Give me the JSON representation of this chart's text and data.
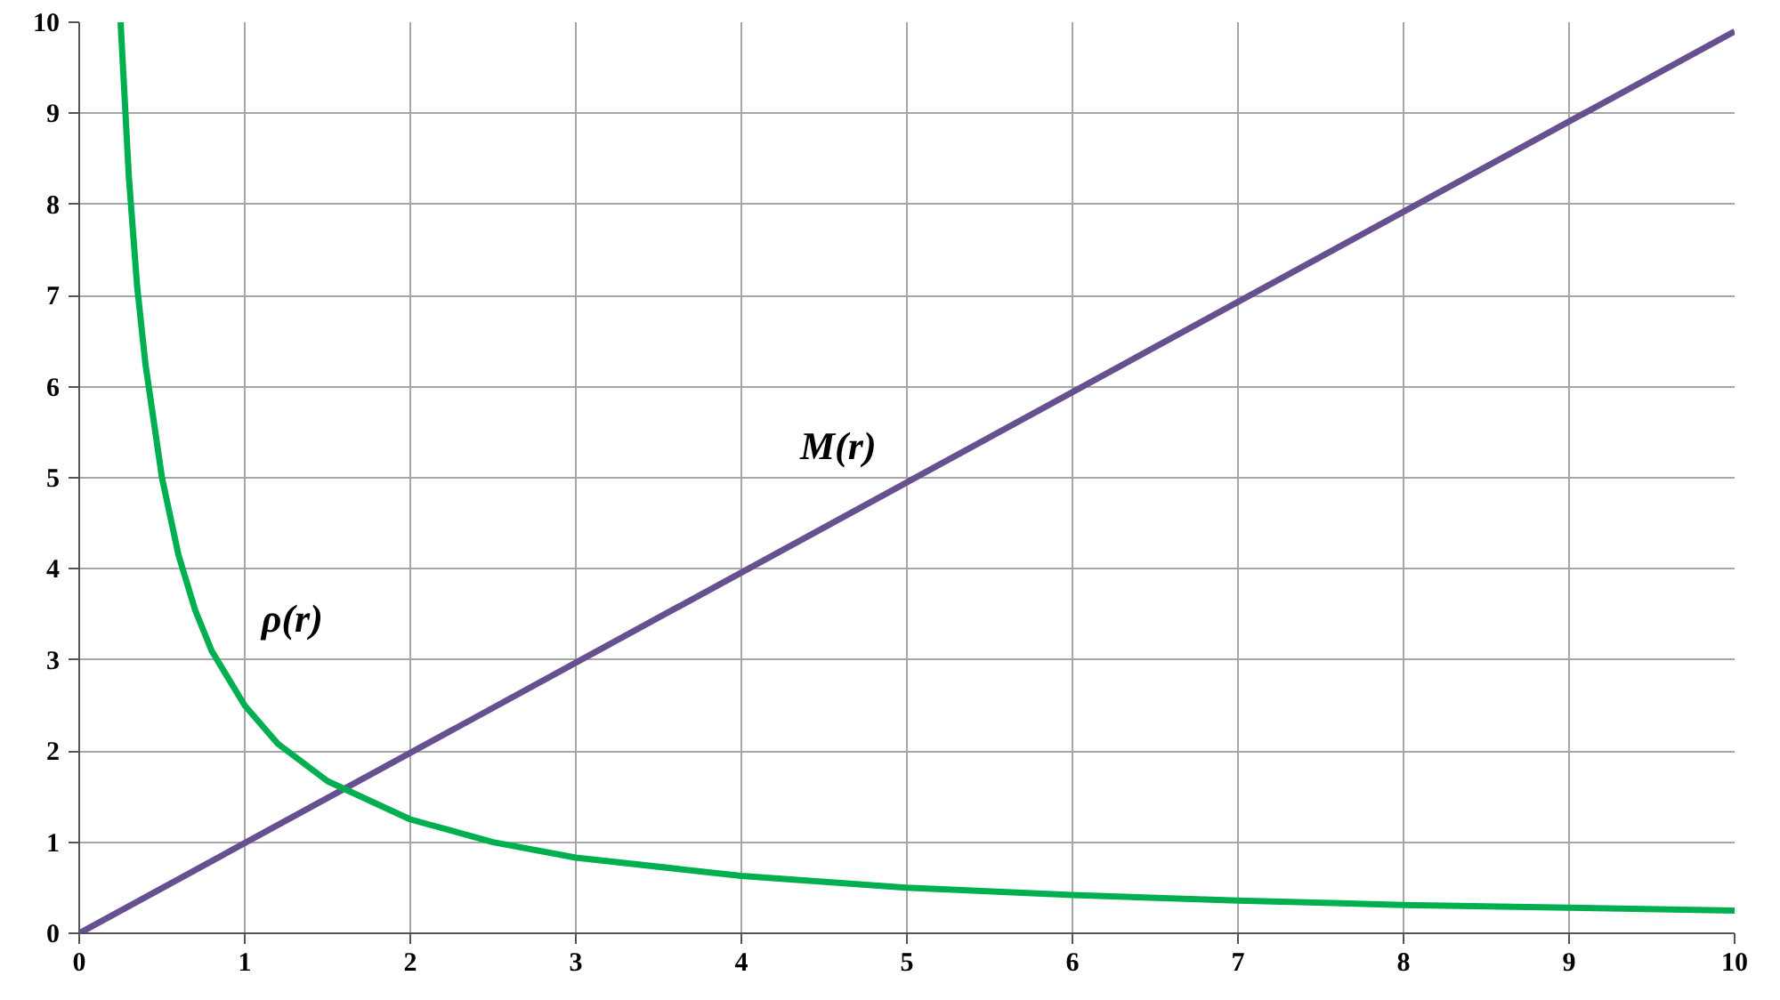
{
  "chart_data": {
    "type": "line",
    "series": [
      {
        "name": "M(r)",
        "color": "#67508f",
        "x": [
          0,
          10
        ],
        "values": [
          0,
          9.9
        ]
      },
      {
        "name": "ρ(r)",
        "color": "#00b050",
        "x": [
          0.25,
          0.3,
          0.35,
          0.4,
          0.5,
          0.6,
          0.7,
          0.8,
          1,
          1.2,
          1.5,
          2,
          2.5,
          3,
          4,
          5,
          6,
          7,
          8,
          9,
          10
        ],
        "values": [
          10,
          8.3,
          7.1,
          6.25,
          5,
          4.15,
          3.55,
          3.1,
          2.5,
          2.08,
          1.67,
          1.25,
          1,
          0.83,
          0.63,
          0.5,
          0.42,
          0.36,
          0.31,
          0.28,
          0.25
        ]
      }
    ],
    "xlim": [
      0,
      10
    ],
    "ylim": [
      0,
      10
    ],
    "xticks": [
      0,
      1,
      2,
      3,
      4,
      5,
      6,
      7,
      8,
      9,
      10
    ],
    "yticks": [
      0,
      1,
      2,
      3,
      4,
      5,
      6,
      7,
      8,
      9,
      10
    ],
    "grid": true,
    "marker": "none",
    "line_style": "solid"
  }
}
